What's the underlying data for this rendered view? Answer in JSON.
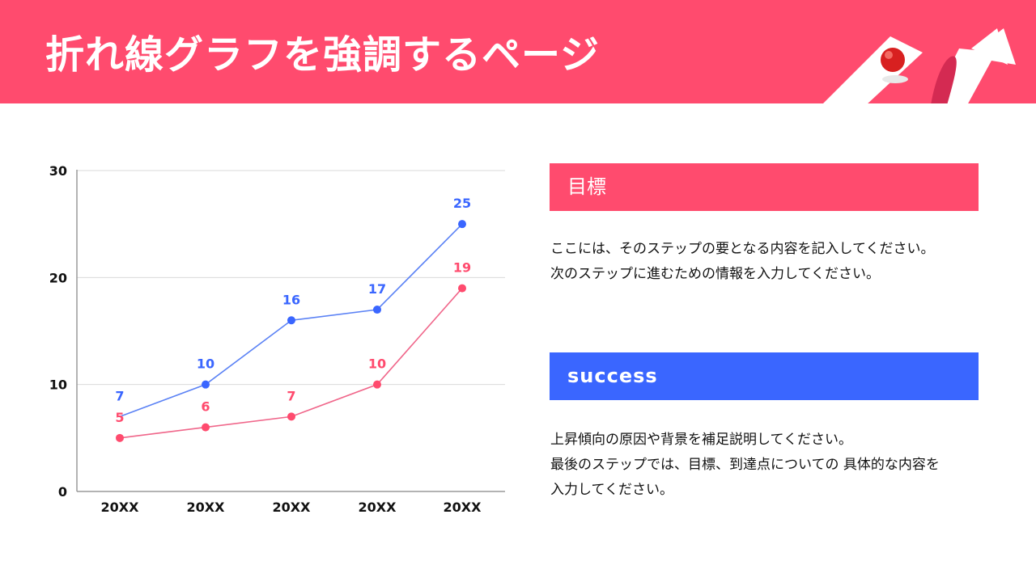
{
  "header": {
    "title": "折れ線グラフを強調するページ",
    "background": "#ff4b6e",
    "decoration": "arrow-with-ball-icon"
  },
  "chart_data": {
    "type": "line",
    "title": "",
    "xlabel": "",
    "ylabel": "",
    "ylim": [
      0,
      30
    ],
    "yticks": [
      0,
      10,
      20,
      30
    ],
    "grid": true,
    "legend": null,
    "categories": [
      "20XX",
      "20XX",
      "20XX",
      "20XX",
      "20XX"
    ],
    "series": [
      {
        "name": "blue-series",
        "color": "#3a66ff",
        "values": [
          7,
          10,
          16,
          17,
          25
        ]
      },
      {
        "name": "pink-series",
        "color": "#ff4b6e",
        "values": [
          5,
          6,
          7,
          10,
          19
        ]
      }
    ],
    "data_labels": true
  },
  "panels": [
    {
      "heading": "目標",
      "color": "#ff4b6e",
      "lines": [
        "ここには、そのステップの要となる内容を記入してください。",
        "次のステップに進むための情報を入力してください。"
      ]
    },
    {
      "heading": "success",
      "color": "#3a66ff",
      "lines": [
        "上昇傾向の原因や背景を補足説明してください。",
        "最後のステップでは、目標、到達点についての 具体的な内容を",
        "入力してください。"
      ]
    }
  ]
}
